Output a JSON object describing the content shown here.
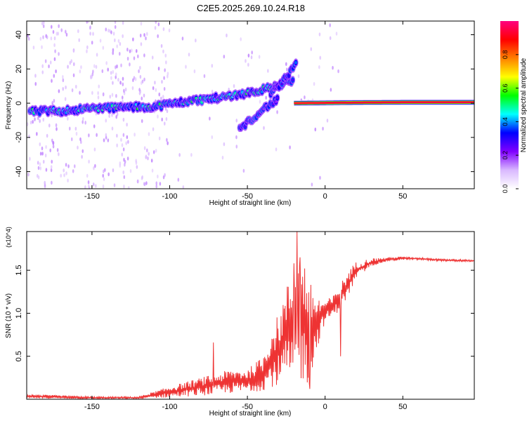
{
  "title": "C2E5.2025.269.10.24.R18",
  "chart_data": [
    {
      "type": "heatmap",
      "title": "C2E5.2025.269.10.24.R18",
      "xlabel": "Height of straight line (km)",
      "ylabel": "Frequency (Hz)",
      "xlim": [
        -192,
        96
      ],
      "ylim": [
        -50,
        48
      ],
      "xticks": [
        -150,
        -100,
        -50,
        0,
        50
      ],
      "yticks": [
        -40,
        -20,
        0,
        20,
        40
      ],
      "colorbar": {
        "label": "Normalized spectral amplitude",
        "range": [
          0.0,
          1.0
        ],
        "ticks": [
          0.0,
          0.2,
          0.4,
          0.6,
          0.8
        ],
        "colors": [
          "#ffffff",
          "#d9b8ff",
          "#8000ff",
          "#0000ff",
          "#00ffff",
          "#00ff00",
          "#ffff00",
          "#ff8000",
          "#ff0000",
          "#ff0080"
        ]
      },
      "series": [
        {
          "name": "main-band",
          "x": [
            -190,
            -170,
            -150,
            -130,
            -110,
            -90,
            -70,
            -50,
            -40,
            -30,
            -25,
            -20
          ],
          "y": [
            -5,
            -4.5,
            -3,
            -2.5,
            -2,
            1,
            3,
            6,
            8,
            10,
            12,
            14
          ],
          "amplitude": 0.5
        },
        {
          "name": "branch-up",
          "x": [
            -35,
            -30,
            -26,
            -22,
            -18
          ],
          "y": [
            5,
            10,
            14,
            19,
            24
          ],
          "amplitude": 0.35
        },
        {
          "name": "branch-down",
          "x": [
            -55,
            -48,
            -42,
            -36,
            -30
          ],
          "y": [
            -15,
            -10,
            -5,
            -1,
            2
          ],
          "amplitude": 0.35
        },
        {
          "name": "steady-line",
          "x": [
            -20,
            0,
            20,
            50,
            96
          ],
          "y": [
            0,
            0.2,
            0.4,
            0.5,
            0.5
          ],
          "amplitude": 0.95
        }
      ]
    },
    {
      "type": "line",
      "xlabel": "Height of straight line (km)",
      "ylabel": "SNR (10 * v/v)",
      "multiplier": "(x10^4)",
      "xlim": [
        -192,
        96
      ],
      "ylim": [
        0,
        1.95
      ],
      "xticks": [
        -150,
        -100,
        -50,
        0,
        50
      ],
      "yticks": [
        0.5,
        1.0,
        1.5
      ],
      "line_color": "#ee3333",
      "envelope": {
        "x": [
          -192,
          -150,
          -120,
          -100,
          -80,
          -60,
          -50,
          -40,
          -35,
          -30,
          -25,
          -20,
          -15,
          -10,
          -5,
          0,
          5,
          10,
          15,
          20,
          30,
          40,
          50,
          60,
          70,
          80,
          96
        ],
        "low": [
          0.01,
          0.005,
          0.005,
          0.02,
          0.04,
          0.07,
          0.08,
          0.1,
          0.15,
          0.12,
          0.2,
          0.1,
          0.2,
          0.15,
          0.6,
          0.9,
          0.95,
          1.05,
          1.2,
          1.4,
          1.55,
          1.6,
          1.62,
          1.62,
          1.61,
          1.6,
          1.6
        ],
        "high": [
          0.06,
          0.03,
          0.03,
          0.15,
          0.25,
          0.35,
          0.35,
          0.5,
          0.8,
          1.0,
          1.3,
          1.6,
          1.75,
          1.4,
          1.2,
          1.15,
          1.2,
          1.35,
          1.5,
          1.6,
          1.64,
          1.65,
          1.66,
          1.65,
          1.64,
          1.63,
          1.62
        ]
      },
      "spikes": [
        {
          "x": -72,
          "y": 0.66
        },
        {
          "x": -20,
          "y": 1.58
        },
        {
          "x": -18,
          "y": 1.95
        },
        {
          "x": -16,
          "y": 1.65
        },
        {
          "x": -10,
          "y": 0.12
        },
        {
          "x": 10,
          "y": 0.5
        }
      ]
    }
  ]
}
